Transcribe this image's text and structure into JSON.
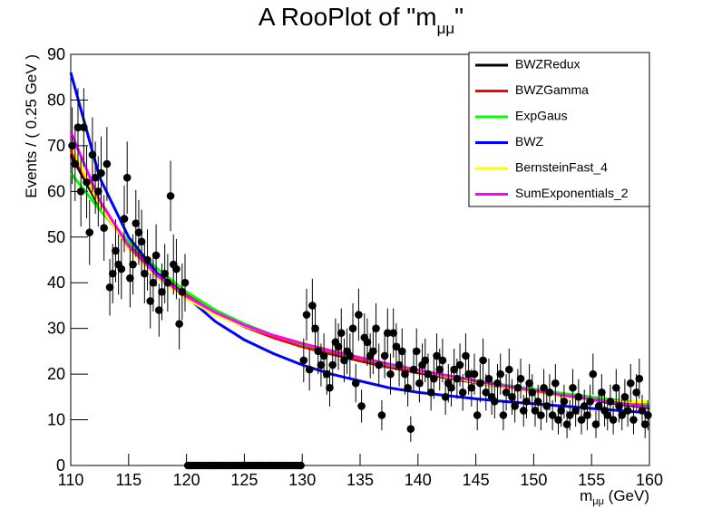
{
  "chart_data": {
    "type": "scatter",
    "title": [
      "A RooPlot of \"m",
      "μμ",
      "\""
    ],
    "x_label": [
      "m",
      "μμ",
      " (GeV)"
    ],
    "y_label": "Events / ( 0.25 GeV )",
    "xlim": [
      110,
      160
    ],
    "ylim": [
      0,
      90
    ],
    "xticks": [
      110,
      115,
      120,
      125,
      130,
      135,
      140,
      145,
      150,
      155,
      160
    ],
    "yticks": [
      0,
      10,
      20,
      30,
      40,
      50,
      60,
      70,
      80,
      90
    ],
    "legend": "top-right",
    "points": {
      "color": "#000000",
      "x": [
        110.125,
        110.375,
        110.625,
        110.875,
        111.125,
        111.375,
        111.625,
        111.875,
        112.125,
        112.375,
        112.625,
        112.875,
        113.125,
        113.375,
        113.625,
        113.875,
        114.125,
        114.375,
        114.625,
        114.875,
        115.125,
        115.375,
        115.625,
        115.875,
        116.125,
        116.375,
        116.625,
        116.875,
        117.125,
        117.375,
        117.625,
        117.875,
        118.125,
        118.375,
        118.625,
        118.875,
        119.125,
        119.375,
        119.625,
        119.875,
        120.125,
        120.375,
        120.625,
        120.875,
        121.125,
        121.375,
        121.625,
        121.875,
        122.125,
        122.375,
        122.625,
        122.875,
        123.125,
        123.375,
        123.625,
        123.875,
        124.125,
        124.375,
        124.625,
        124.875,
        125.125,
        125.375,
        125.625,
        125.875,
        126.125,
        126.375,
        126.625,
        126.875,
        127.125,
        127.375,
        127.625,
        127.875,
        128.125,
        128.375,
        128.625,
        128.875,
        129.125,
        129.375,
        129.625,
        129.875,
        130.125,
        130.375,
        130.625,
        130.875,
        131.125,
        131.375,
        131.625,
        131.875,
        132.125,
        132.375,
        132.625,
        132.875,
        133.125,
        133.375,
        133.625,
        133.875,
        134.125,
        134.375,
        134.625,
        134.875,
        135.125,
        135.375,
        135.625,
        135.875,
        136.125,
        136.375,
        136.625,
        136.875,
        137.125,
        137.375,
        137.625,
        137.875,
        138.125,
        138.375,
        138.625,
        138.875,
        139.125,
        139.375,
        139.625,
        139.875,
        140.125,
        140.375,
        140.625,
        140.875,
        141.125,
        141.375,
        141.625,
        141.875,
        142.125,
        142.375,
        142.625,
        142.875,
        143.125,
        143.375,
        143.625,
        143.875,
        144.125,
        144.375,
        144.625,
        144.875,
        145.125,
        145.375,
        145.625,
        145.875,
        146.125,
        146.375,
        146.625,
        146.875,
        147.125,
        147.375,
        147.625,
        147.875,
        148.125,
        148.375,
        148.625,
        148.875,
        149.125,
        149.375,
        149.625,
        149.875,
        150.125,
        150.375,
        150.625,
        150.875,
        151.125,
        151.375,
        151.625,
        151.875,
        152.125,
        152.375,
        152.625,
        152.875,
        153.125,
        153.375,
        153.625,
        153.875,
        154.125,
        154.375,
        154.625,
        154.875,
        155.125,
        155.375,
        155.625,
        155.875,
        156.125,
        156.375,
        156.625,
        156.875,
        157.125,
        157.375,
        157.625,
        157.875,
        158.125,
        158.375,
        158.625,
        158.875,
        159.125,
        159.375,
        159.625,
        159.875
      ],
      "values": [
        70,
        66,
        74,
        60,
        74,
        62,
        51,
        68,
        63,
        60,
        64,
        52,
        66,
        39,
        42,
        47,
        44,
        43,
        54,
        63,
        41,
        44,
        53,
        51,
        49,
        42,
        45,
        36,
        40,
        46,
        34,
        38,
        42,
        40,
        59,
        44,
        43,
        31,
        38,
        40,
        0,
        0,
        0,
        0,
        0,
        0,
        0,
        0,
        0,
        0,
        0,
        0,
        0,
        0,
        0,
        0,
        0,
        0,
        0,
        0,
        0,
        0,
        0,
        0,
        0,
        0,
        0,
        0,
        0,
        0,
        0,
        0,
        0,
        0,
        0,
        0,
        0,
        0,
        0,
        0,
        23,
        33,
        21,
        35,
        30,
        25,
        22,
        24,
        20,
        17,
        22,
        27,
        26,
        29,
        23,
        25,
        24,
        30,
        18,
        33,
        13,
        28,
        27,
        24,
        25,
        30,
        22,
        11,
        24,
        29,
        20,
        29,
        26,
        22,
        25,
        20,
        17,
        8,
        21,
        25,
        18,
        22,
        23,
        20,
        16,
        19,
        24,
        21,
        23,
        15,
        18,
        17,
        21,
        19,
        22,
        16,
        24,
        20,
        17,
        20,
        11,
        18,
        23,
        16,
        19,
        15,
        14,
        18,
        20,
        11,
        16,
        21,
        15,
        13,
        17,
        19,
        12,
        14,
        18,
        16,
        12,
        14,
        11,
        17,
        13,
        16,
        11,
        18,
        10,
        12,
        14,
        9,
        11,
        17,
        12,
        15,
        10,
        13,
        11,
        14,
        20,
        9,
        13,
        16,
        12,
        11,
        14,
        10,
        17,
        13,
        11,
        15,
        12,
        18,
        10,
        16,
        19,
        12,
        9,
        11
      ],
      "errors": [
        8.4,
        8.1,
        8.6,
        7.7,
        8.6,
        7.9,
        7.1,
        8.2,
        7.9,
        7.7,
        8,
        7.2,
        8.1,
        6.2,
        6.5,
        6.9,
        6.6,
        6.6,
        7.3,
        7.9,
        6.4,
        6.6,
        7.3,
        7.1,
        7,
        6.5,
        6.7,
        6,
        6.3,
        6.8,
        5.8,
        6.2,
        6.5,
        6.3,
        7.7,
        6.6,
        6.6,
        5.6,
        6.2,
        6.3,
        0,
        0,
        0,
        0,
        0,
        0,
        0,
        0,
        0,
        0,
        0,
        0,
        0,
        0,
        0,
        0,
        0,
        0,
        0,
        0,
        0,
        0,
        0,
        0,
        0,
        0,
        0,
        0,
        0,
        0,
        0,
        0,
        0,
        0,
        0,
        0,
        0,
        0,
        0,
        0,
        4.8,
        5.7,
        4.6,
        5.9,
        5.5,
        5,
        4.7,
        4.9,
        4.5,
        4.1,
        4.7,
        5.2,
        5.1,
        5.4,
        4.8,
        5,
        4.9,
        5.5,
        4.2,
        5.7,
        3.6,
        5.3,
        5.2,
        4.9,
        5,
        5.5,
        4.7,
        3.3,
        4.9,
        5.4,
        4.5,
        5.4,
        5.1,
        4.7,
        5,
        4.5,
        4.1,
        2.8,
        4.6,
        5,
        4.2,
        4.7,
        4.8,
        4.5,
        4,
        4.4,
        4.9,
        4.6,
        4.8,
        3.9,
        4.2,
        4.1,
        4.6,
        4.4,
        4.7,
        4,
        4.9,
        4.5,
        4.1,
        4.5,
        3.3,
        4.2,
        4.8,
        4,
        4.4,
        3.9,
        3.7,
        4.2,
        4.5,
        3.3,
        4,
        4.6,
        3.9,
        3.6,
        4.1,
        4.4,
        3.5,
        3.7,
        4.2,
        4,
        3.5,
        3.7,
        3.3,
        4.1,
        3.6,
        4,
        3.3,
        4.2,
        3.2,
        3.5,
        3.7,
        3,
        3.3,
        4.1,
        3.5,
        3.9,
        3.2,
        3.6,
        3.3,
        3.7,
        4.5,
        3,
        3.6,
        4,
        3.5,
        3.3,
        3.7,
        3.2,
        4.1,
        3.6,
        3.3,
        3.9,
        3.5,
        4.2,
        3.2,
        4,
        4.4,
        3.5,
        3,
        3.3
      ]
    },
    "curve_x": [
      110,
      112.5,
      115,
      117.5,
      120,
      122.5,
      125,
      127.5,
      130,
      132.5,
      135,
      137.5,
      140,
      142.5,
      145,
      147.5,
      150,
      152.5,
      155,
      157.5,
      160
    ],
    "series": [
      {
        "name": "BWZRedux",
        "color": "#000000",
        "values": [
          68,
          56.5,
          48,
          41.8,
          37.3,
          33.4,
          30.4,
          28,
          26,
          24.4,
          22.9,
          21.5,
          20.3,
          19.2,
          18.1,
          17.1,
          16.1,
          15.2,
          14.3,
          13.4,
          12.6
        ]
      },
      {
        "name": "BWZGamma",
        "color": "#ff0000",
        "values": [
          69,
          57,
          48.5,
          42,
          37.5,
          33.5,
          30.5,
          28,
          26,
          24.5,
          23,
          21.6,
          20.4,
          19.3,
          18.2,
          17.2,
          16.3,
          15.4,
          14.5,
          13.7,
          12.9
        ]
      },
      {
        "name": "ExpGaus",
        "color": "#00ff00",
        "values": [
          64,
          56,
          49,
          43,
          38,
          34,
          31,
          28.5,
          26.5,
          25,
          23.5,
          22,
          20.8,
          19.7,
          18.6,
          17.6,
          16.7,
          15.8,
          15,
          14.2,
          13.5
        ]
      },
      {
        "name": "BWZ",
        "color": "#0000ff",
        "values": [
          86,
          63,
          50,
          42,
          37,
          31.5,
          27.5,
          24.5,
          22,
          20,
          18.5,
          17,
          16,
          15.3,
          14.6,
          14,
          13.5,
          13,
          12.5,
          12,
          11.5
        ]
      },
      {
        "name": "BernsteinFast_4",
        "color": "#ffff00",
        "values": [
          70,
          57,
          47.5,
          41,
          36.5,
          33,
          30.5,
          28.5,
          26.8,
          25.2,
          23.7,
          22.2,
          20.8,
          19.5,
          18.2,
          17.1,
          16,
          15.1,
          14.3,
          13.9,
          14
        ]
      },
      {
        "name": "SumExponentials_2",
        "color": "#ff00ff",
        "values": [
          73,
          58,
          48,
          41.5,
          37,
          33.5,
          30.7,
          28.5,
          26.7,
          25.1,
          23.6,
          22.2,
          20.9,
          19.7,
          18.5,
          17.4,
          16.4,
          15.4,
          14.5,
          13.6,
          12.8
        ]
      }
    ]
  }
}
